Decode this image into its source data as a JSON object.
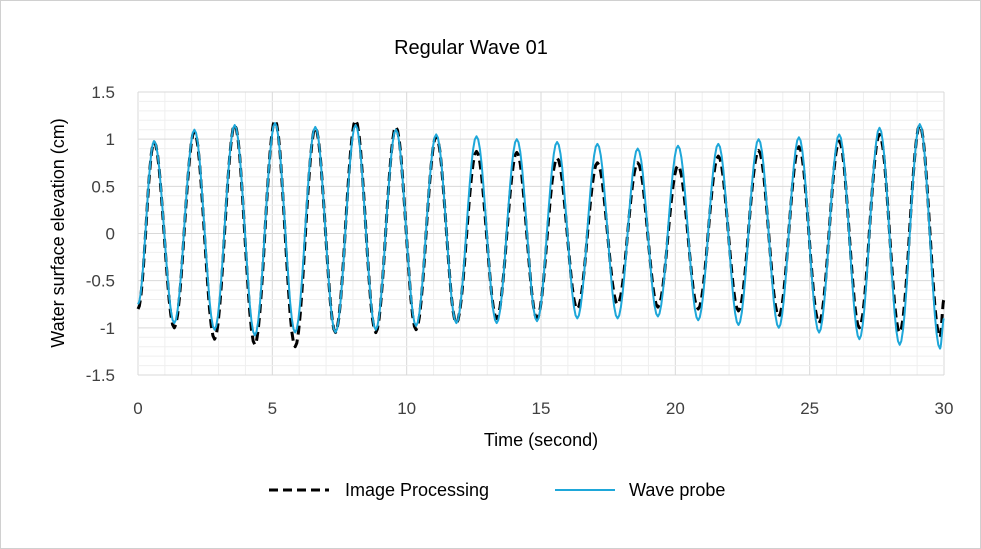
{
  "chart_data": {
    "type": "line",
    "title": "Regular Wave 01",
    "xlabel": "Time (second)",
    "ylabel": "Water surface elevation (cm)",
    "xlim": [
      0,
      30
    ],
    "ylim": [
      -1.5,
      1.5
    ],
    "x_ticks": [
      0,
      5,
      10,
      15,
      20,
      25,
      30
    ],
    "y_ticks": [
      -1.5,
      -1,
      -0.5,
      0,
      0.5,
      1,
      1.5
    ],
    "x_tick_labels": [
      "0",
      "5",
      "10",
      "15",
      "20",
      "25",
      "30"
    ],
    "y_tick_labels": [
      "-1.5",
      "-1",
      "-0.5",
      "0",
      "0.5",
      "1",
      "1.5"
    ],
    "grid": "major and minor",
    "legend_position": "bottom",
    "series": [
      {
        "name": "Image Processing",
        "style": "dashed",
        "color": "#000000",
        "x": [
          0.0,
          0.6,
          1.35,
          2.1,
          2.85,
          3.6,
          4.35,
          5.1,
          5.85,
          6.6,
          7.35,
          8.1,
          8.85,
          9.6,
          10.35,
          11.1,
          11.85,
          12.6,
          13.35,
          14.1,
          14.85,
          15.6,
          16.35,
          17.1,
          17.85,
          18.6,
          19.35,
          20.1,
          20.85,
          21.6,
          22.35,
          23.1,
          23.85,
          24.6,
          25.35,
          26.1,
          26.85,
          27.6,
          28.35,
          29.1,
          29.85,
          30.0
        ],
        "y": [
          -0.8,
          0.97,
          -1.0,
          1.08,
          -1.12,
          1.15,
          -1.18,
          1.2,
          -1.2,
          1.12,
          -1.05,
          1.2,
          -1.05,
          1.13,
          -1.02,
          1.03,
          -0.95,
          0.87,
          -0.9,
          0.86,
          -0.9,
          0.8,
          -0.8,
          0.75,
          -0.75,
          0.75,
          -0.78,
          0.72,
          -0.8,
          0.82,
          -0.82,
          0.88,
          -0.88,
          0.92,
          -0.95,
          0.98,
          -1.0,
          1.05,
          -1.05,
          1.15,
          -1.1,
          -0.7
        ]
      },
      {
        "name": "Wave probe",
        "style": "solid",
        "color": "#1ea7d9",
        "x": [
          0.0,
          0.6,
          1.35,
          2.1,
          2.85,
          3.6,
          4.35,
          5.1,
          5.85,
          6.6,
          7.35,
          8.1,
          8.85,
          9.6,
          10.35,
          11.1,
          11.85,
          12.6,
          13.35,
          14.1,
          14.85,
          15.6,
          16.35,
          17.1,
          17.85,
          18.6,
          19.35,
          20.1,
          20.85,
          21.6,
          22.35,
          23.1,
          23.85,
          24.6,
          25.35,
          26.1,
          26.85,
          27.6,
          28.35,
          29.1,
          29.85,
          30.0
        ],
        "y": [
          -0.75,
          0.98,
          -0.95,
          1.1,
          -1.02,
          1.15,
          -1.08,
          1.17,
          -1.05,
          1.13,
          -1.05,
          1.15,
          -1.02,
          1.1,
          -0.98,
          1.05,
          -0.95,
          1.03,
          -0.95,
          1.0,
          -0.93,
          0.97,
          -0.9,
          0.95,
          -0.9,
          0.9,
          -0.88,
          0.93,
          -0.92,
          0.95,
          -0.97,
          1.0,
          -1.0,
          1.02,
          -1.05,
          1.05,
          -1.12,
          1.12,
          -1.18,
          1.16,
          -1.22,
          -0.9
        ]
      }
    ]
  }
}
